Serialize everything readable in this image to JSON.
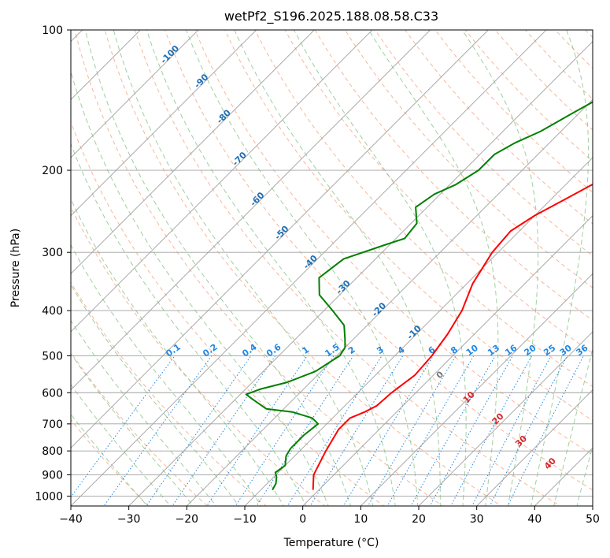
{
  "chart_data": {
    "type": "line",
    "subtype": "skew-t log-p diagram",
    "title": "wetPf2_S196.2025.188.08.58.C33",
    "xlabel": "Temperature (°C)",
    "ylabel": "Pressure (hPa)",
    "xlim": [
      -40,
      50
    ],
    "ylim": [
      1050,
      100
    ],
    "y_scale": "log",
    "grid": true,
    "x_ticks": [
      -40,
      -30,
      -20,
      -10,
      0,
      10,
      20,
      30,
      40,
      50
    ],
    "y_ticks": [
      100,
      200,
      300,
      400,
      500,
      600,
      700,
      800,
      900,
      1000
    ],
    "series": [
      {
        "color": "#ff0000",
        "points": [
          [
            -1.0,
            970
          ],
          [
            -3.5,
            900
          ],
          [
            -5.5,
            800
          ],
          [
            -7.0,
            720
          ],
          [
            -7.0,
            680
          ],
          [
            -5.5,
            660
          ],
          [
            -4.5,
            640
          ],
          [
            -4.2,
            600
          ],
          [
            -3.2,
            550
          ],
          [
            -3.6,
            500
          ],
          [
            -4.6,
            450
          ],
          [
            -6.2,
            400
          ],
          [
            -9.0,
            350
          ],
          [
            -11.0,
            300
          ],
          [
            -11.5,
            270
          ],
          [
            -10.0,
            250
          ],
          [
            -7.5,
            230
          ],
          [
            -4.8,
            210
          ],
          [
            -2.5,
            195
          ],
          [
            0.5,
            183
          ],
          [
            2.6,
            175
          ],
          [
            4.0,
            165
          ],
          [
            4.8,
            150
          ],
          [
            5.8,
            140
          ],
          [
            7.0,
            130
          ],
          [
            8.5,
            120
          ],
          [
            10.5,
            110
          ],
          [
            12.3,
            100
          ]
        ]
      },
      {
        "color": "#008000",
        "points": [
          [
            -8.0,
            970
          ],
          [
            -8.5,
            940
          ],
          [
            -9.5,
            910
          ],
          [
            -10.5,
            890
          ],
          [
            -10.0,
            860
          ],
          [
            -11.5,
            820
          ],
          [
            -12.0,
            790
          ],
          [
            -12.0,
            740
          ],
          [
            -11.5,
            700
          ],
          [
            -13.5,
            680
          ],
          [
            -18.0,
            660
          ],
          [
            -23.0,
            650
          ],
          [
            -27.0,
            620
          ],
          [
            -29.0,
            605
          ],
          [
            -27.5,
            590
          ],
          [
            -24.0,
            570
          ],
          [
            -21.0,
            540
          ],
          [
            -19.5,
            500
          ],
          [
            -20.0,
            480
          ],
          [
            -21.5,
            460
          ],
          [
            -24.0,
            430
          ],
          [
            -28.5,
            400
          ],
          [
            -33.5,
            370
          ],
          [
            -36.5,
            340
          ],
          [
            -35.5,
            310
          ],
          [
            -31.0,
            290
          ],
          [
            -28.5,
            280
          ],
          [
            -29.0,
            260
          ],
          [
            -32.0,
            240
          ],
          [
            -31.0,
            225
          ],
          [
            -29.0,
            215
          ],
          [
            -27.5,
            200
          ],
          [
            -27.5,
            185
          ],
          [
            -26.0,
            175
          ],
          [
            -23.5,
            165
          ],
          [
            -21.0,
            150
          ],
          [
            -18.0,
            135
          ],
          [
            -15.0,
            120
          ],
          [
            -11.0,
            110
          ],
          [
            -8.5,
            100
          ]
        ]
      }
    ],
    "dry_adiabats_label": [
      "-100",
      "-90",
      "-80",
      "-70",
      "-60",
      "-50",
      "-40",
      "-30",
      "-20",
      "-10"
    ],
    "moist_adiabats_label": [
      "0",
      "10",
      "20",
      "30",
      "40"
    ],
    "mixing_ratio_labels": [
      "0.1",
      "0.2",
      "0.4",
      "0.6",
      "1",
      "1.5",
      "2",
      "3",
      "4",
      "6",
      "8",
      "10",
      "13",
      "16",
      "20",
      "25",
      "30",
      "36"
    ]
  },
  "colors": {
    "temperature": "#ff0000",
    "dewpoint": "#008000",
    "isotherm_grid": "#a0a0a0",
    "dry_adiabat": "#f4a582",
    "moist_adiabat": "#7fbf7f",
    "mixing_ratio": "#1e88e5"
  }
}
